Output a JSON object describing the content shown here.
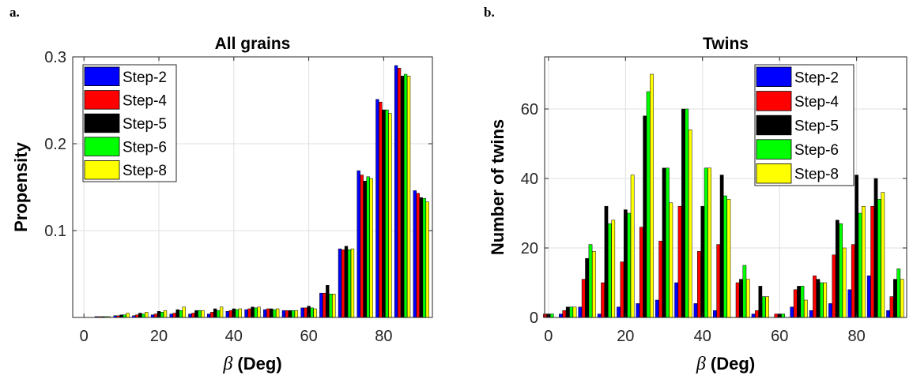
{
  "panels": [
    {
      "letter": "a."
    },
    {
      "letter": "b."
    }
  ],
  "chart_data": [
    {
      "type": "bar",
      "title": "All grains",
      "xlabel_symbol": "β",
      "xlabel_unit": "(Deg)",
      "ylabel": "Propensity",
      "xlim": [
        -3,
        93
      ],
      "ylim": [
        0,
        0.3
      ],
      "xticks": [
        0,
        20,
        40,
        60,
        80
      ],
      "xtick_labels": [
        "0",
        "20",
        "40",
        "60",
        "80"
      ],
      "yticks": [
        0.1,
        0.2,
        0.3
      ],
      "ytick_labels": [
        "0.1",
        "0.2",
        "0.3"
      ],
      "grid": true,
      "legend": "top-left",
      "categories": [
        5,
        10,
        15,
        20,
        25,
        30,
        35,
        40,
        45,
        50,
        55,
        60,
        65,
        70,
        75,
        80,
        85,
        90
      ],
      "series": [
        {
          "name": "Step-2",
          "color": "#0000ff",
          "values": [
            0.001,
            0.002,
            0.002,
            0.003,
            0.004,
            0.004,
            0.004,
            0.007,
            0.009,
            0.009,
            0.008,
            0.011,
            0.028,
            0.079,
            0.169,
            0.251,
            0.29,
            0.146
          ]
        },
        {
          "name": "Step-4",
          "color": "#ff0000",
          "values": [
            0.001,
            0.002,
            0.003,
            0.004,
            0.005,
            0.005,
            0.006,
            0.008,
            0.01,
            0.01,
            0.008,
            0.011,
            0.028,
            0.078,
            0.164,
            0.248,
            0.287,
            0.143
          ]
        },
        {
          "name": "Step-5",
          "color": "#000000",
          "values": [
            0.001,
            0.003,
            0.005,
            0.007,
            0.009,
            0.008,
            0.01,
            0.01,
            0.012,
            0.01,
            0.008,
            0.013,
            0.037,
            0.082,
            0.157,
            0.239,
            0.278,
            0.138
          ]
        },
        {
          "name": "Step-6",
          "color": "#00ff00",
          "values": [
            0.001,
            0.003,
            0.004,
            0.006,
            0.008,
            0.008,
            0.008,
            0.009,
            0.011,
            0.009,
            0.008,
            0.011,
            0.027,
            0.078,
            0.162,
            0.239,
            0.28,
            0.137
          ]
        },
        {
          "name": "Step-8",
          "color": "#ffff00",
          "values": [
            0.001,
            0.005,
            0.006,
            0.008,
            0.012,
            0.008,
            0.012,
            0.01,
            0.012,
            0.01,
            0.008,
            0.01,
            0.027,
            0.079,
            0.16,
            0.235,
            0.278,
            0.133
          ]
        }
      ]
    },
    {
      "type": "bar",
      "title": "Twins",
      "xlabel_symbol": "β",
      "xlabel_unit": "(Deg)",
      "ylabel": "Number of twins",
      "xlim": [
        -1,
        93
      ],
      "ylim": [
        0,
        75
      ],
      "xticks": [
        0,
        20,
        40,
        60,
        80
      ],
      "xtick_labels": [
        "0",
        "20",
        "40",
        "60",
        "80"
      ],
      "yticks": [
        0,
        20,
        40,
        60
      ],
      "ytick_labels": [
        "0",
        "20",
        "40",
        "60"
      ],
      "grid": true,
      "legend": "top-right",
      "categories": [
        0,
        5,
        10,
        15,
        20,
        25,
        30,
        35,
        40,
        45,
        50,
        55,
        60,
        65,
        70,
        75,
        80,
        85,
        90
      ],
      "series": [
        {
          "name": "Step-2",
          "color": "#0000ff",
          "values": [
            0,
            1,
            3,
            1,
            3,
            4,
            5,
            10,
            4,
            2,
            0,
            1,
            0,
            3,
            2,
            4,
            8,
            12,
            2
          ]
        },
        {
          "name": "Step-4",
          "color": "#ff0000",
          "values": [
            1,
            2,
            11,
            10,
            16,
            26,
            22,
            32,
            19,
            21,
            10,
            2,
            1,
            8,
            12,
            18,
            21,
            32,
            6
          ]
        },
        {
          "name": "Step-5",
          "color": "#000000",
          "values": [
            1,
            3,
            17,
            32,
            31,
            58,
            43,
            60,
            32,
            41,
            11,
            9,
            1,
            9,
            11,
            28,
            41,
            40,
            11
          ]
        },
        {
          "name": "Step-6",
          "color": "#00ff00",
          "values": [
            1,
            3,
            21,
            27,
            30,
            65,
            43,
            60,
            43,
            35,
            15,
            6,
            1,
            9,
            10,
            27,
            30,
            34,
            14
          ]
        },
        {
          "name": "Step-8",
          "color": "#ffff00",
          "values": [
            0,
            3,
            19,
            28,
            41,
            70,
            33,
            54,
            43,
            34,
            11,
            6,
            0,
            5,
            10,
            20,
            32,
            36,
            11
          ]
        }
      ]
    }
  ]
}
